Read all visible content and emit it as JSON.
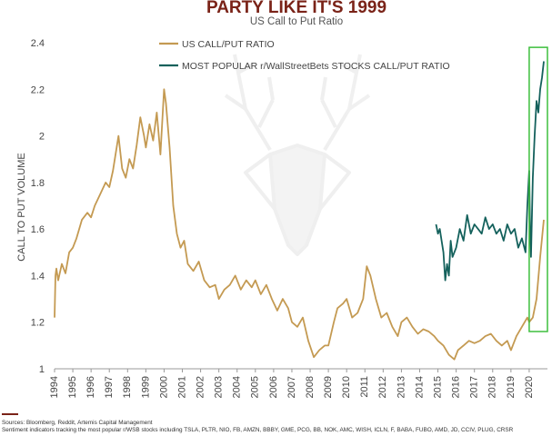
{
  "chart_data": {
    "type": "line",
    "title": "PARTY LIKE IT'S 1999",
    "subtitle": "US Call to Put Ratio",
    "ylabel": "CALL TO PUT VOLUME",
    "xlabel": "",
    "ylim": [
      1,
      2.4
    ],
    "yticks": [
      "1",
      "1.2",
      "1.4",
      "1.6",
      "1.8",
      "2",
      "2.2",
      "2.4"
    ],
    "xlim": [
      1994,
      2021
    ],
    "xticks": [
      "1994",
      "1995",
      "1996",
      "1997",
      "1998",
      "1999",
      "2000",
      "2001",
      "2002",
      "2003",
      "2004",
      "2005",
      "2006",
      "2007",
      "2008",
      "2009",
      "2010",
      "2011",
      "2012",
      "2013",
      "2014",
      "2015",
      "2016",
      "2017",
      "2018",
      "2019",
      "2020"
    ],
    "legend_position": "top-left",
    "highlight_box": {
      "x_range": [
        2020.0,
        2021.0
      ],
      "y_range": [
        1.16,
        2.38
      ],
      "color": "#3dbf3d"
    },
    "series": [
      {
        "name": "US CALL/PUT RATIO",
        "color": "#c49a52",
        "x": [
          1994.0,
          1994.05,
          1994.1,
          1994.2,
          1994.4,
          1994.6,
          1994.8,
          1995.0,
          1995.2,
          1995.5,
          1995.8,
          1996.0,
          1996.2,
          1996.5,
          1996.8,
          1997.0,
          1997.2,
          1997.5,
          1997.7,
          1997.9,
          1998.1,
          1998.3,
          1998.5,
          1998.7,
          1998.9,
          1999.0,
          1999.2,
          1999.4,
          1999.6,
          1999.8,
          2000.0,
          2000.1,
          2000.3,
          2000.5,
          2000.7,
          2000.9,
          2001.1,
          2001.3,
          2001.6,
          2001.9,
          2002.2,
          2002.5,
          2002.8,
          2003.0,
          2003.3,
          2003.6,
          2003.9,
          2004.2,
          2004.5,
          2004.8,
          2005.0,
          2005.3,
          2005.6,
          2005.9,
          2006.2,
          2006.5,
          2006.8,
          2007.0,
          2007.3,
          2007.6,
          2007.9,
          2008.2,
          2008.5,
          2008.8,
          2009.0,
          2009.3,
          2009.5,
          2009.8,
          2010.0,
          2010.3,
          2010.6,
          2010.9,
          2011.1,
          2011.3,
          2011.6,
          2011.9,
          2012.2,
          2012.5,
          2012.8,
          2013.0,
          2013.3,
          2013.6,
          2013.9,
          2014.2,
          2014.5,
          2014.8,
          2015.0,
          2015.3,
          2015.6,
          2015.9,
          2016.1,
          2016.4,
          2016.7,
          2017.0,
          2017.3,
          2017.6,
          2017.9,
          2018.2,
          2018.5,
          2018.8,
          2019.0,
          2019.3,
          2019.6,
          2019.9,
          2020.0,
          2020.2,
          2020.4,
          2020.6,
          2020.8
        ],
        "values": [
          1.22,
          1.4,
          1.43,
          1.38,
          1.45,
          1.41,
          1.5,
          1.52,
          1.56,
          1.64,
          1.67,
          1.65,
          1.7,
          1.75,
          1.8,
          1.78,
          1.85,
          2.0,
          1.86,
          1.82,
          1.9,
          1.86,
          1.96,
          2.08,
          2.0,
          1.95,
          2.05,
          1.98,
          2.1,
          1.92,
          2.2,
          2.14,
          1.95,
          1.7,
          1.58,
          1.52,
          1.55,
          1.45,
          1.42,
          1.46,
          1.38,
          1.35,
          1.36,
          1.3,
          1.34,
          1.36,
          1.4,
          1.34,
          1.38,
          1.35,
          1.38,
          1.32,
          1.36,
          1.3,
          1.25,
          1.3,
          1.26,
          1.2,
          1.18,
          1.22,
          1.12,
          1.05,
          1.08,
          1.1,
          1.1,
          1.2,
          1.26,
          1.28,
          1.3,
          1.22,
          1.24,
          1.3,
          1.44,
          1.4,
          1.3,
          1.22,
          1.24,
          1.18,
          1.14,
          1.2,
          1.22,
          1.18,
          1.15,
          1.17,
          1.16,
          1.14,
          1.12,
          1.1,
          1.06,
          1.04,
          1.08,
          1.1,
          1.12,
          1.11,
          1.12,
          1.14,
          1.15,
          1.12,
          1.1,
          1.12,
          1.08,
          1.14,
          1.18,
          1.22,
          1.2,
          1.22,
          1.3,
          1.48,
          1.64
        ]
      },
      {
        "name": "MOST POPULAR r/WallStreetBets STOCKS CALL/PUT RATIO",
        "color": "#14615c",
        "x": [
          2014.9,
          2015.0,
          2015.1,
          2015.2,
          2015.3,
          2015.4,
          2015.5,
          2015.6,
          2015.7,
          2015.8,
          2016.0,
          2016.2,
          2016.4,
          2016.6,
          2016.8,
          2017.0,
          2017.2,
          2017.4,
          2017.6,
          2017.8,
          2018.0,
          2018.2,
          2018.4,
          2018.6,
          2018.8,
          2019.0,
          2019.2,
          2019.4,
          2019.6,
          2019.8,
          2019.9,
          2020.0,
          2020.05,
          2020.1,
          2020.2,
          2020.3,
          2020.4,
          2020.5,
          2020.6,
          2020.7,
          2020.8
        ],
        "values": [
          1.62,
          1.58,
          1.6,
          1.55,
          1.5,
          1.38,
          1.45,
          1.4,
          1.55,
          1.48,
          1.52,
          1.6,
          1.55,
          1.66,
          1.58,
          1.62,
          1.6,
          1.58,
          1.65,
          1.6,
          1.62,
          1.58,
          1.6,
          1.55,
          1.62,
          1.58,
          1.6,
          1.52,
          1.56,
          1.5,
          1.7,
          1.85,
          1.6,
          1.48,
          1.82,
          2.0,
          2.15,
          2.1,
          2.2,
          2.25,
          2.32
        ]
      }
    ]
  },
  "watermark": "stag-head-logo",
  "footer": {
    "sources": "Sources: Bloomberg, Reddit, Artemis Capital Management",
    "note": "Sentiment indicators tracking the most popular r/WSB stocks including TSLA, PLTR, NIO, FB, AMZN, BBBY, GME, PCG, BB, NOK, AMC, WISH, ICLN, F, BABA, FUBO, AMD, JD, CCIV, PLUG, CRSR"
  }
}
